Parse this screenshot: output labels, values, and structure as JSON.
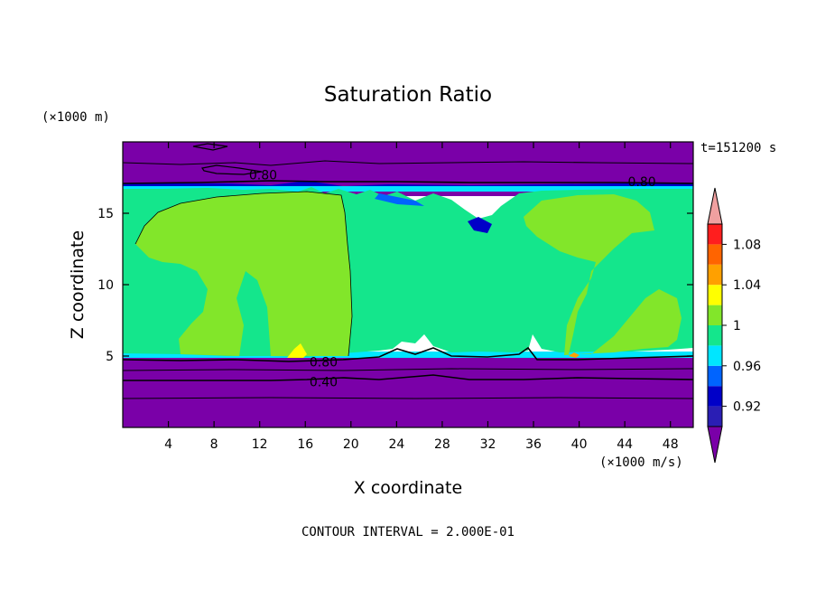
{
  "chart_data": {
    "type": "contour",
    "title": "Saturation Ratio",
    "xlabel": "X coordinate",
    "ylabel": "Z coordinate",
    "x_unit": "(×1000 m/s)",
    "y_unit": "(×1000 m)",
    "time_label": "t=151200 s",
    "footer": "CONTOUR INTERVAL = 2.000E-01",
    "xlim": [
      0,
      50
    ],
    "ylim": [
      0,
      20
    ],
    "x_ticks": [
      4,
      8,
      12,
      16,
      20,
      24,
      28,
      32,
      36,
      40,
      44,
      48
    ],
    "y_ticks": [
      5,
      10,
      15
    ],
    "colorbar": {
      "levels": [
        0.92,
        0.96,
        1,
        1.04,
        1.08
      ],
      "labels": [
        "0.92",
        "0.96",
        "1",
        "1.04",
        "1.08"
      ],
      "extend": "both",
      "colors": [
        "#7a00a8",
        "#2a1eb4",
        "#0000c8",
        "#0064ff",
        "#00e6ff",
        "#14e68c",
        "#82e62a",
        "#ffff00",
        "#ffa000",
        "#ff6400",
        "#ff1e1e",
        "#f0a0a0"
      ]
    },
    "contour_labels": [
      {
        "text": "0.80",
        "x": 12.3,
        "z": 17.7
      },
      {
        "text": "0.80",
        "x": 45.5,
        "z": 17.2
      },
      {
        "text": "0.80",
        "x": 17.6,
        "z": 4.6
      },
      {
        "text": "0.40",
        "x": 17.6,
        "z": 3.2
      }
    ],
    "regions": {
      "dry_upper_layer_z": [
        16.8,
        20
      ],
      "saturated_band_z": [
        5,
        16.8
      ],
      "dry_lower_layer_z": [
        0,
        5
      ]
    }
  }
}
